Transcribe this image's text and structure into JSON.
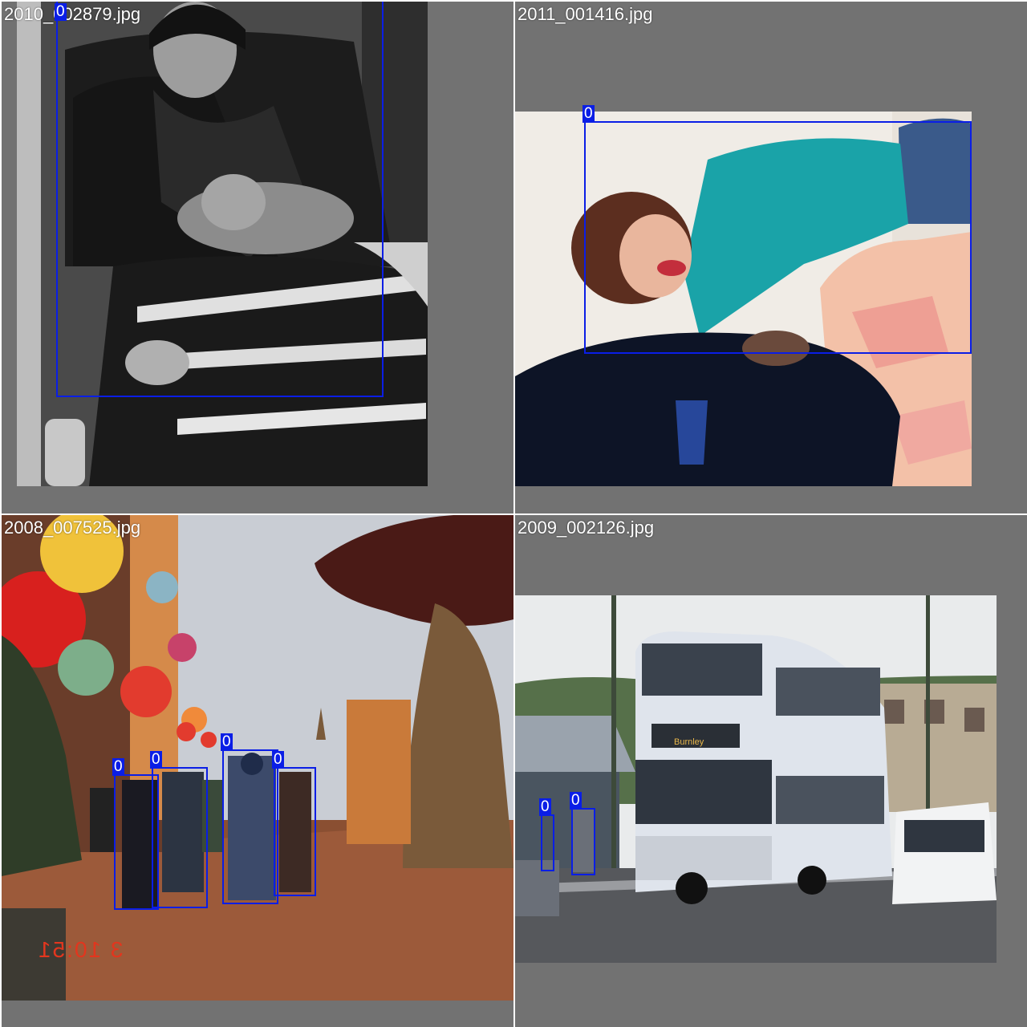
{
  "box_color": "#0a1ee6",
  "tiles": [
    {
      "filename": "2010_002879.jpg",
      "scene": "woman-with-dog",
      "boxes": [
        {
          "label": "0"
        }
      ]
    },
    {
      "filename": "2011_001416.jpg",
      "scene": "woman-lying-in-bed",
      "boxes": [
        {
          "label": "0"
        }
      ]
    },
    {
      "filename": "2008_007525.jpg",
      "scene": "people-walking-on-street",
      "overlay_text": "3 10:51",
      "boxes": [
        {
          "label": "0"
        },
        {
          "label": "0"
        },
        {
          "label": "0"
        },
        {
          "label": "0"
        }
      ]
    },
    {
      "filename": "2009_002126.jpg",
      "scene": "double-decker-bus",
      "bus_destination": "Burnley",
      "boxes": [
        {
          "label": "0"
        },
        {
          "label": "0"
        }
      ]
    }
  ]
}
